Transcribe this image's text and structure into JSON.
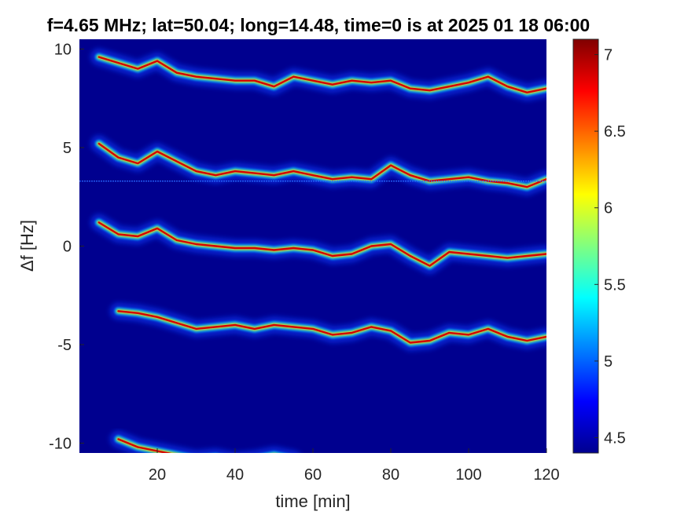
{
  "chart_data": {
    "type": "heatmap",
    "title": "f=4.65 MHz;  lat=50.04; long=14.48, time=0 is at 2025 01 18 06:00",
    "xlabel": "time [min]",
    "ylabel": "Δf [Hz]",
    "xlim": [
      0,
      120
    ],
    "ylim": [
      -10.5,
      10.5
    ],
    "x_ticks": [
      20,
      40,
      60,
      80,
      100,
      120
    ],
    "x_tick_labels": [
      "20",
      "40",
      "60",
      "80",
      "100",
      "120"
    ],
    "y_ticks": [
      10,
      5,
      0,
      -5,
      -10
    ],
    "y_tick_labels": [
      "10",
      "5",
      "0",
      "-5",
      "-10"
    ],
    "colorbar": {
      "clim": [
        4.4,
        7.1
      ],
      "ticks": [
        4.5,
        5,
        5.5,
        6,
        6.5,
        7
      ],
      "tick_labels": [
        "4.5",
        "5",
        "5.5",
        "6",
        "6.5",
        "7"
      ],
      "colormap": "jet"
    },
    "background_color": "#00008f",
    "series": [
      {
        "x": [
          5,
          10,
          15,
          20,
          25,
          30,
          35,
          40,
          45,
          50,
          55,
          60,
          65,
          70,
          75,
          80,
          85,
          90,
          95,
          100,
          105,
          110,
          115,
          120
        ],
        "y": [
          9.6,
          9.3,
          9.0,
          9.4,
          8.8,
          8.6,
          8.5,
          8.4,
          8.4,
          8.1,
          8.6,
          8.4,
          8.2,
          8.4,
          8.3,
          8.4,
          8.0,
          7.9,
          8.1,
          8.3,
          8.6,
          8.1,
          7.8,
          8.0
        ]
      },
      {
        "x": [
          5,
          10,
          15,
          20,
          25,
          30,
          35,
          40,
          45,
          50,
          55,
          60,
          65,
          70,
          75,
          80,
          85,
          90,
          95,
          100,
          105,
          110,
          115,
          120
        ],
        "y": [
          5.2,
          4.5,
          4.2,
          4.8,
          4.3,
          3.8,
          3.6,
          3.8,
          3.7,
          3.6,
          3.8,
          3.6,
          3.4,
          3.5,
          3.4,
          4.1,
          3.6,
          3.3,
          3.4,
          3.5,
          3.3,
          3.2,
          3.0,
          3.4
        ]
      },
      {
        "x": [
          5,
          10,
          15,
          20,
          25,
          30,
          35,
          40,
          45,
          50,
          55,
          60,
          65,
          70,
          75,
          80,
          85,
          90,
          95,
          100,
          105,
          110,
          115,
          120
        ],
        "y": [
          1.2,
          0.6,
          0.5,
          0.9,
          0.3,
          0.1,
          0.0,
          -0.1,
          -0.1,
          -0.2,
          -0.1,
          -0.2,
          -0.5,
          -0.4,
          0.0,
          0.1,
          -0.5,
          -1.0,
          -0.3,
          -0.4,
          -0.5,
          -0.6,
          -0.5,
          -0.4
        ]
      },
      {
        "x": [
          10,
          15,
          20,
          25,
          30,
          35,
          40,
          45,
          50,
          55,
          60,
          65,
          70,
          75,
          80,
          85,
          90,
          95,
          100,
          105,
          110,
          115,
          120
        ],
        "y": [
          -3.3,
          -3.4,
          -3.6,
          -3.9,
          -4.2,
          -4.1,
          -4.0,
          -4.2,
          -4.0,
          -4.1,
          -4.2,
          -4.5,
          -4.4,
          -4.1,
          -4.3,
          -4.9,
          -4.8,
          -4.4,
          -4.5,
          -4.2,
          -4.6,
          -4.8,
          -4.6
        ]
      },
      {
        "x": [
          10,
          15,
          20,
          25,
          30,
          35,
          40,
          45,
          50,
          55
        ],
        "y": [
          -9.8,
          -10.2,
          -10.4,
          -10.6,
          -10.8,
          -10.7,
          -10.9,
          -10.8,
          -10.6,
          -10.8
        ]
      },
      {
        "x": [
          0,
          120
        ],
        "y": [
          3.3,
          3.3
        ]
      }
    ]
  }
}
